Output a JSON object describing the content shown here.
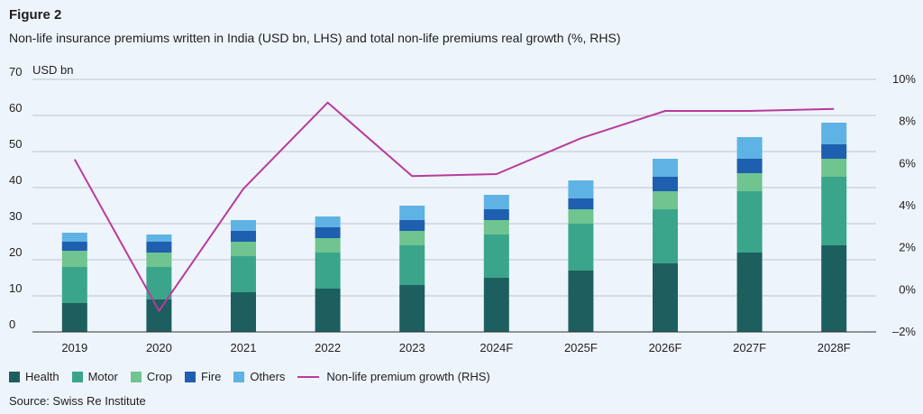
{
  "figure": {
    "label": "Figure 2",
    "subtitle": "Non-life insurance premiums written in India (USD bn, LHS) and total non-life premiums real growth (%, RHS)",
    "source": "Source: Swiss Re Institute"
  },
  "chart_data": {
    "type": "bar",
    "stacked": true,
    "categories": [
      "2019",
      "2020",
      "2021",
      "2022",
      "2023",
      "2024F",
      "2025F",
      "2026F",
      "2027F",
      "2028F"
    ],
    "left_axis": {
      "unit_label": "USD bn",
      "ylim": [
        0,
        70
      ],
      "ticks": [
        "0",
        "10",
        "20",
        "30",
        "40",
        "50",
        "60",
        "70"
      ]
    },
    "right_axis": {
      "ylim": [
        -2,
        10
      ],
      "ticks": [
        "–2%",
        "0%",
        "2%",
        "4%",
        "6%",
        "8%",
        "10%"
      ]
    },
    "series": [
      {
        "name": "Health",
        "color": "#1d5f5f",
        "values": [
          8,
          9,
          11,
          12,
          13,
          15,
          17,
          19,
          22,
          24
        ]
      },
      {
        "name": "Motor",
        "color": "#3aa58a",
        "values": [
          10,
          9,
          10,
          10,
          11,
          12,
          13,
          15,
          17,
          19
        ]
      },
      {
        "name": "Crop",
        "color": "#6fc48f",
        "values": [
          4.5,
          4,
          4,
          4,
          4,
          4,
          4,
          5,
          5,
          5
        ]
      },
      {
        "name": "Fire",
        "color": "#1f5faf",
        "values": [
          2.5,
          3,
          3,
          3,
          3,
          3,
          3,
          4,
          4,
          4
        ]
      },
      {
        "name": "Others",
        "color": "#5eb3e4",
        "values": [
          2.5,
          2,
          3,
          3,
          4,
          4,
          5,
          5,
          6,
          6
        ]
      }
    ],
    "line_series": {
      "name": "Non-life premium growth (RHS)",
      "color": "#b83b9c",
      "values": [
        6.2,
        -1.0,
        4.8,
        8.9,
        5.4,
        5.5,
        7.2,
        8.5,
        8.5,
        8.6
      ]
    },
    "grid": true,
    "legend_position": "bottom-left"
  }
}
